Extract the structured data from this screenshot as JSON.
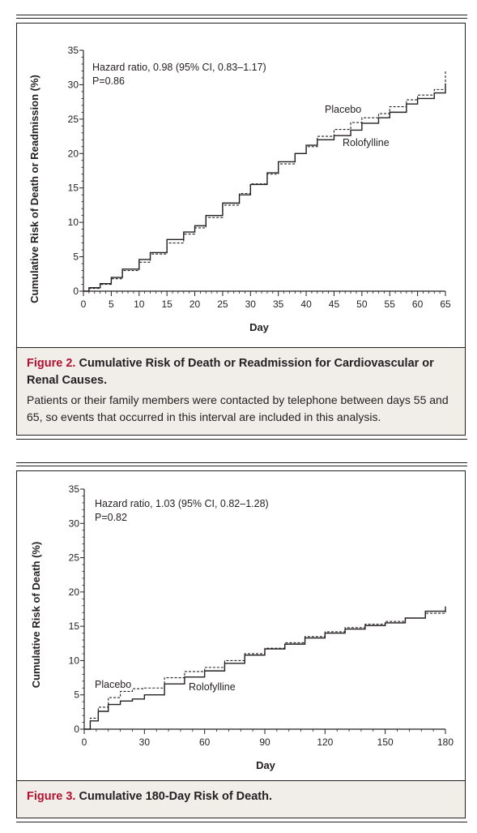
{
  "figures": [
    {
      "number": "Figure 2.",
      "title": "Cumulative Risk of Death or Readmission for Cardiovascular or Renal Causes.",
      "description": "Patients or their family members were contacted by telephone between days 55 and 65, so events that occurred in this interval are included in this analysis."
    },
    {
      "number": "Figure 3.",
      "title": "Cumulative 180-Day Risk of Death."
    }
  ],
  "chart_data": [
    {
      "type": "line",
      "title": "",
      "xlabel": "Day",
      "ylabel": "Cumulative Risk of Death or Readmission (%)",
      "xlim": [
        0,
        65
      ],
      "ylim": [
        0,
        35
      ],
      "xticks": [
        0,
        5,
        10,
        15,
        20,
        25,
        30,
        35,
        40,
        45,
        50,
        55,
        60,
        65
      ],
      "yticks": [
        0,
        5,
        10,
        15,
        20,
        25,
        30,
        35
      ],
      "annotations": [
        "Hazard ratio, 0.98 (95% CI, 0.83–1.17)",
        "P=0.86"
      ],
      "series": [
        {
          "name": "Placebo",
          "style": "dashed",
          "x": [
            0,
            1,
            3,
            5,
            7,
            10,
            12,
            15,
            18,
            20,
            22,
            25,
            28,
            30,
            33,
            35,
            38,
            40,
            42,
            45,
            48,
            50,
            53,
            55,
            58,
            60,
            63,
            65
          ],
          "y": [
            0,
            0.4,
            1.0,
            1.8,
            3.0,
            4.2,
            5.4,
            7.0,
            8.3,
            9.2,
            10.7,
            12.5,
            14.2,
            15.6,
            17.0,
            18.5,
            20.0,
            21.0,
            22.5,
            23.5,
            24.5,
            25.2,
            25.8,
            26.8,
            27.8,
            28.5,
            29.3,
            32.0
          ]
        },
        {
          "name": "Rolofylline",
          "style": "solid",
          "x": [
            0,
            1,
            3,
            5,
            7,
            10,
            12,
            15,
            18,
            20,
            22,
            25,
            28,
            30,
            33,
            35,
            38,
            40,
            42,
            45,
            48,
            50,
            53,
            55,
            58,
            60,
            63,
            65
          ],
          "y": [
            0,
            0.5,
            1.1,
            2.0,
            3.2,
            4.6,
            5.6,
            7.5,
            8.6,
            9.5,
            11.0,
            12.8,
            14.0,
            15.5,
            17.2,
            18.8,
            20.0,
            21.2,
            22.0,
            22.6,
            23.4,
            24.4,
            25.2,
            26.0,
            27.2,
            28.0,
            28.8,
            30.2
          ]
        }
      ],
      "labels": [
        "Placebo",
        "Rolofylline"
      ]
    },
    {
      "type": "line",
      "title": "",
      "xlabel": "Day",
      "ylabel": "Cumulative Risk of Death (%)",
      "xlim": [
        0,
        180
      ],
      "ylim": [
        0,
        35
      ],
      "xticks": [
        0,
        30,
        60,
        90,
        120,
        150,
        180
      ],
      "yticks": [
        0,
        5,
        10,
        15,
        20,
        25,
        30,
        35
      ],
      "annotations": [
        "Hazard ratio, 1.03 (95% CI, 0.82–1.28)",
        "P=0.82"
      ],
      "series": [
        {
          "name": "Placebo",
          "style": "dashed",
          "x": [
            0,
            3,
            7,
            12,
            18,
            24,
            30,
            40,
            50,
            60,
            70,
            80,
            90,
            100,
            110,
            120,
            130,
            140,
            150,
            160,
            170,
            180
          ],
          "y": [
            0,
            1.6,
            3.2,
            4.6,
            5.5,
            5.9,
            6.0,
            7.5,
            8.4,
            9.0,
            10.0,
            11.0,
            11.8,
            12.6,
            13.5,
            14.2,
            14.8,
            15.3,
            15.7,
            16.2,
            16.9,
            17.4
          ]
        },
        {
          "name": "Rolofylline",
          "style": "solid",
          "x": [
            0,
            3,
            7,
            12,
            18,
            24,
            30,
            40,
            50,
            60,
            70,
            80,
            90,
            100,
            110,
            120,
            130,
            140,
            150,
            160,
            170,
            180
          ],
          "y": [
            0,
            1.2,
            2.6,
            3.6,
            4.1,
            4.4,
            5.0,
            6.6,
            7.6,
            8.5,
            9.6,
            10.8,
            11.7,
            12.4,
            13.3,
            14.0,
            14.6,
            15.1,
            15.5,
            16.2,
            17.2,
            17.9
          ]
        }
      ],
      "labels": [
        "Placebo",
        "Rolofylline"
      ]
    }
  ]
}
